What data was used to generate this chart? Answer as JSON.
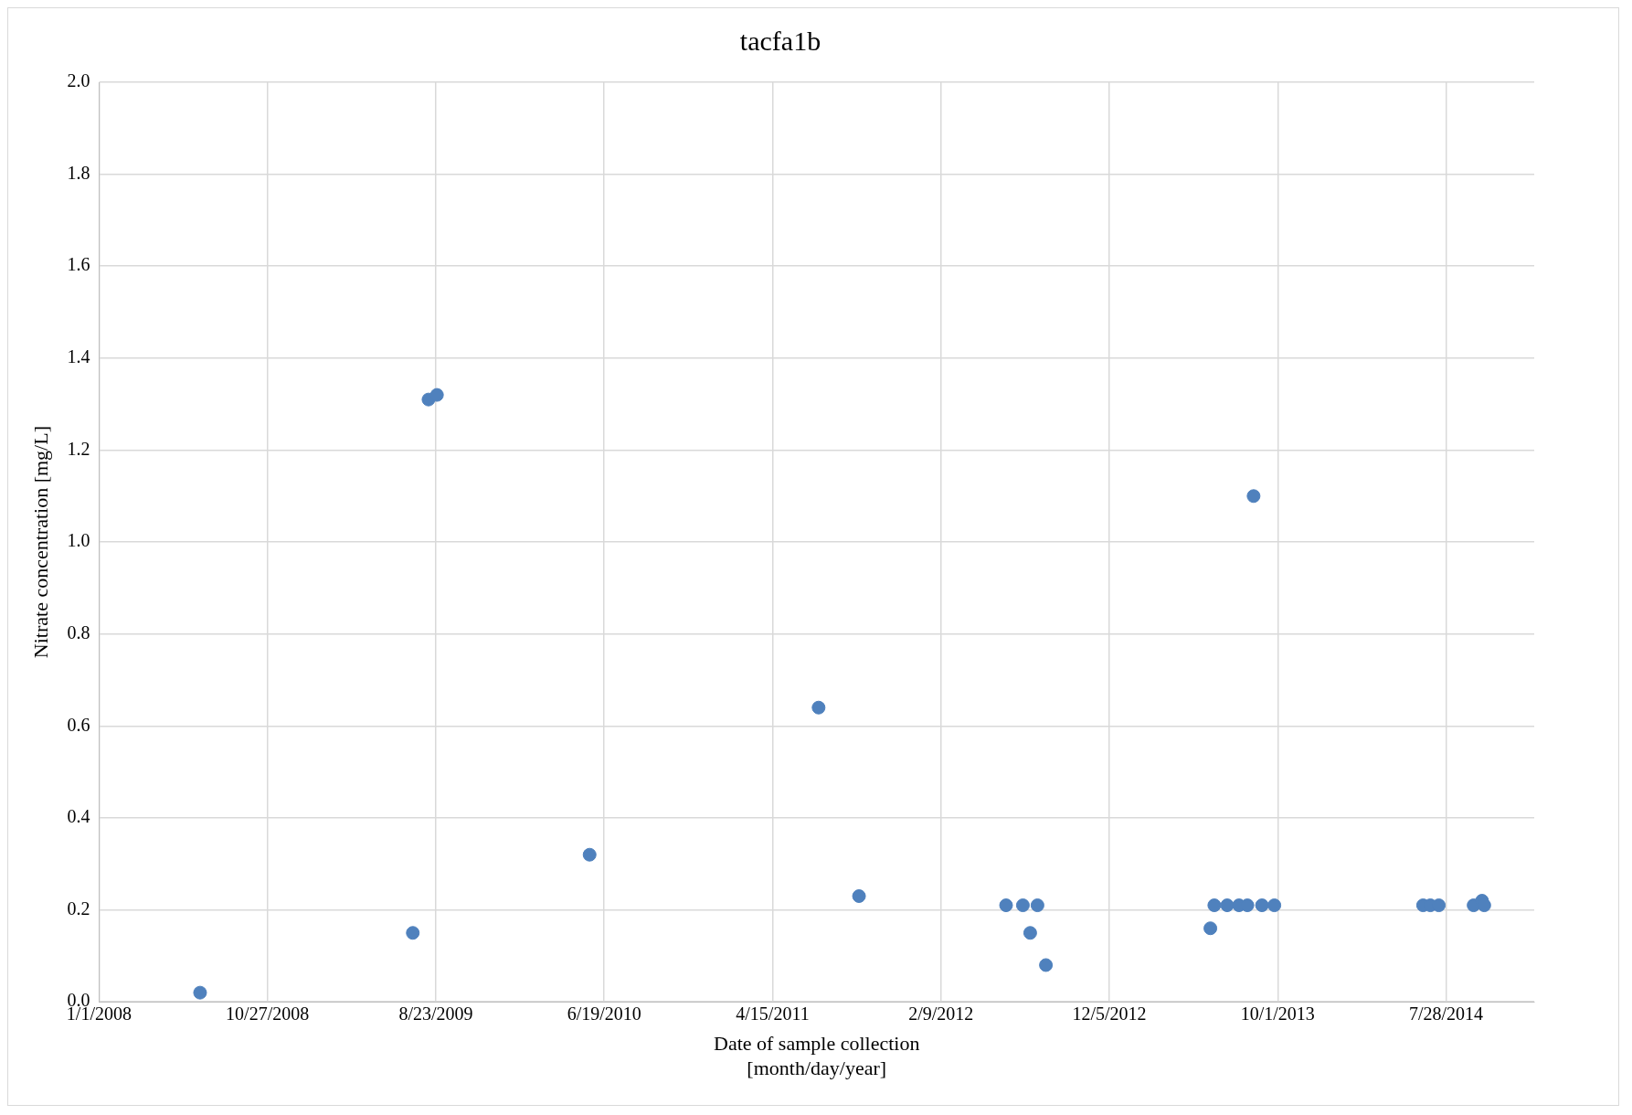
{
  "chart_data": {
    "type": "scatter",
    "title": "tacfa1b",
    "xlabel": "Date of sample collection\n[month/day/year]",
    "ylabel": "Nitrate concentration [mg/L]",
    "x": [
      "2008-06-29",
      "2009-07-13",
      "2009-08-10",
      "2009-08-25",
      "2010-05-24",
      "2011-07-06",
      "2011-09-16",
      "2012-06-04",
      "2012-07-04",
      "2012-07-17",
      "2012-07-30",
      "2012-08-14",
      "2013-06-03",
      "2013-06-10",
      "2013-07-03",
      "2013-07-24",
      "2013-08-08",
      "2013-08-19",
      "2013-09-03",
      "2013-09-25",
      "2014-06-17",
      "2014-06-30",
      "2014-07-15",
      "2014-09-15",
      "2014-09-30",
      "2014-10-04"
    ],
    "series": [
      {
        "color": "#4f81bd",
        "values": [
          0.02,
          0.15,
          1.31,
          1.32,
          0.32,
          0.64,
          0.23,
          0.21,
          0.21,
          0.15,
          0.21,
          0.08,
          0.16,
          0.21,
          0.21,
          0.21,
          0.21,
          1.1,
          0.21,
          0.21,
          0.21,
          0.21,
          0.21,
          0.21,
          0.22,
          0.21
        ]
      }
    ],
    "xlim": [
      "2008-01-01",
      "2015-01-01"
    ],
    "xticks": [
      {
        "value": "2008-01-01",
        "label": "1/1/2008"
      },
      {
        "value": "2008-10-27",
        "label": "10/27/2008"
      },
      {
        "value": "2009-08-23",
        "label": "8/23/2009"
      },
      {
        "value": "2010-06-19",
        "label": "6/19/2010"
      },
      {
        "value": "2011-04-15",
        "label": "4/15/2011"
      },
      {
        "value": "2012-02-09",
        "label": "2/9/2012"
      },
      {
        "value": "2012-12-05",
        "label": "12/5/2012"
      },
      {
        "value": "2013-10-01",
        "label": "10/1/2013"
      },
      {
        "value": "2014-07-28",
        "label": "7/28/2014"
      }
    ],
    "ylim": [
      0,
      2
    ],
    "yticks": [
      {
        "value": 0,
        "label": "0.0"
      },
      {
        "value": 0.2,
        "label": "0.2"
      },
      {
        "value": 0.4,
        "label": "0.4"
      },
      {
        "value": 0.6,
        "label": "0.6"
      },
      {
        "value": 0.8,
        "label": "0.8"
      },
      {
        "value": 1,
        "label": "1.0"
      },
      {
        "value": 1.2,
        "label": "1.2"
      },
      {
        "value": 1.4,
        "label": "1.4"
      },
      {
        "value": 1.6,
        "label": "1.6"
      },
      {
        "value": 1.8,
        "label": "1.8"
      },
      {
        "value": 2,
        "label": "2.0"
      }
    ],
    "grid": true,
    "marker": "circle"
  }
}
